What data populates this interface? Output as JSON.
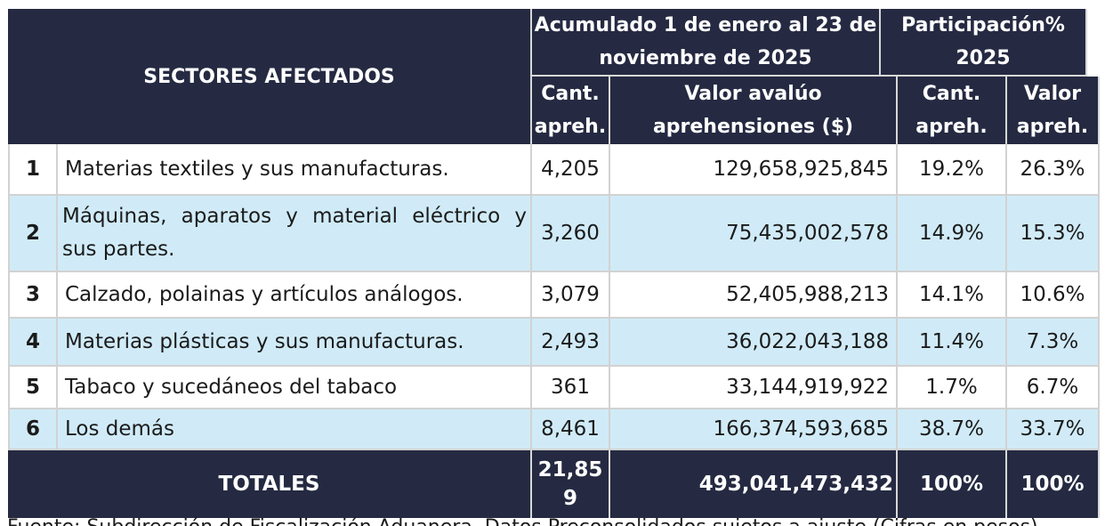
{
  "header": {
    "sectores": "SECTORES AFECTADOS",
    "acumulado_line1": "Acumulado 1 de enero al 23 de",
    "acumulado_line2": "noviembre de 2025",
    "participacion_line1": "Participación%",
    "participacion_line2": "2025",
    "cant_line1": "Cant.",
    "cant_line2": "apreh.",
    "valor_line1": "Valor avalúo",
    "valor_line2": "aprehensiones ($)",
    "pcant_line1": "Cant.",
    "pcant_line2": "apreh.",
    "pvalor_line1": "Valor",
    "pvalor_line2": "apreh."
  },
  "rows": [
    {
      "idx": "1",
      "sector": "Materias textiles y sus manufacturas.",
      "cant": "4,205",
      "valor": "129,658,925,845",
      "pct_cant": "19.2%",
      "pct_valor": "26.3%"
    },
    {
      "idx": "2",
      "sector": "Máquinas, aparatos y material eléctrico y sus partes.",
      "cant": "3,260",
      "valor": "75,435,002,578",
      "pct_cant": "14.9%",
      "pct_valor": "15.3%"
    },
    {
      "idx": "3",
      "sector": "Calzado, polainas y artículos análogos.",
      "cant": "3,079",
      "valor": "52,405,988,213",
      "pct_cant": "14.1%",
      "pct_valor": "10.6%"
    },
    {
      "idx": "4",
      "sector": "Materias plásticas y sus manufacturas.",
      "cant": "2,493",
      "valor": "36,022,043,188",
      "pct_cant": "11.4%",
      "pct_valor": "7.3%"
    },
    {
      "idx": "5",
      "sector": "Tabaco y sucedáneos del tabaco",
      "cant": "361",
      "valor": "33,144,919,922",
      "pct_cant": "1.7%",
      "pct_valor": "6.7%"
    },
    {
      "idx": "6",
      "sector": "Los demás",
      "cant": "8,461",
      "valor": "166,374,593,685",
      "pct_cant": "38.7%",
      "pct_valor": "33.7%"
    }
  ],
  "totals": {
    "label": "TOTALES",
    "cant_line1": "21,85",
    "cant_line2": "9",
    "valor": "493,041,473,432",
    "pct_cant": "100%",
    "pct_valor": "100%"
  },
  "footnote": "Fuente: Subdirección de Fiscalización Aduanera. Datos Preconsolidados sujetos a ajuste (Cifras en pesos)."
}
